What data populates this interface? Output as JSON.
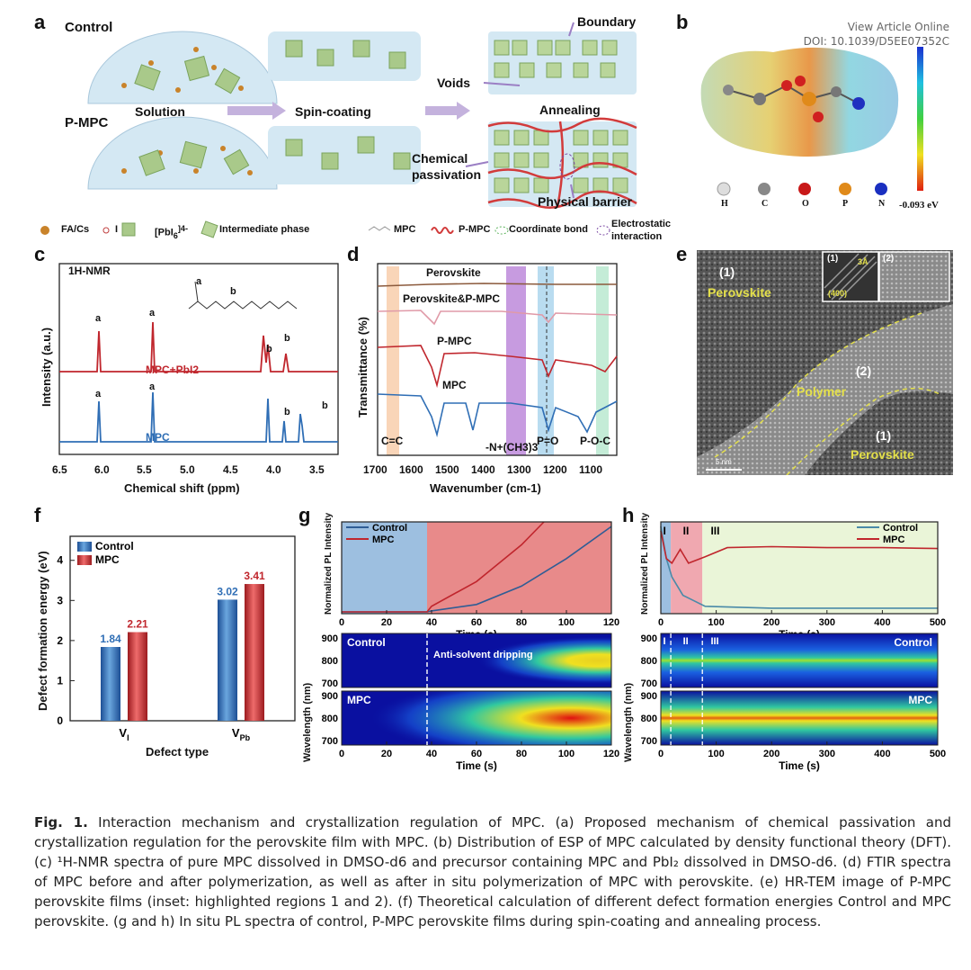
{
  "header": {
    "view_online": "View Article Online",
    "doi": "DOI: 10.1039/D5EE07352C"
  },
  "colors": {
    "red": "#c0262d",
    "blue": "#2f6eb5",
    "green_bg": "#eaf5d8",
    "pink_bg": "#e88a8a"
  },
  "panel_a": {
    "letter": "a",
    "control": "Control",
    "pmpc": "P-MPC",
    "solution": "Solution",
    "spin": "Spin-coating",
    "annealing": "Annealing",
    "boundary": "Boundary",
    "voids": "Voids",
    "chem1": "Chemical",
    "chem2": "passivation",
    "physical": "Physical barrier",
    "legend_facs": "FA/Cs",
    "legend_i": "I",
    "legend_pbi": "[PbI",
    "legend_pbi_sub": "6",
    "legend_pbi_sup": "]4-",
    "legend_inter": "Intermediate phase",
    "legend_mpc": "MPC",
    "legend_pmpc": "P-MPC",
    "legend_coord": "Coordinate bond",
    "legend_elec1": "Electrostatic",
    "legend_elec2": "interaction"
  },
  "panel_b": {
    "letter": "b",
    "scale_min": "-0.093 eV",
    "atoms": [
      "H",
      "C",
      "O",
      "P",
      "N"
    ]
  },
  "panel_c": {
    "letter": "c",
    "nmr_label": "1H-NMR",
    "ylabel": "Intensity (a.u.)",
    "xlabel": "Chemical shift (ppm)",
    "trace_top": "MPC+PbI2",
    "trace_bottom": "MPC",
    "peak_a": "a",
    "peak_b": "b",
    "mol_a": "a",
    "mol_b": "b",
    "xticks": [
      "6.5",
      "6.0",
      "5.5",
      "5.0",
      "4.5",
      "4.0",
      "3.5"
    ]
  },
  "panel_d": {
    "letter": "d",
    "ylabel": "Transmittance (%)",
    "xlabel": "Wavenumber (cm-1)",
    "traces": [
      "Perovskite",
      "Perovskite&P-MPC",
      "P-MPC",
      "MPC"
    ],
    "bands": [
      "C=C",
      "-N+(CH3)3",
      "P=O",
      "P-O-C"
    ],
    "xticks": [
      "1700",
      "1600",
      "1500",
      "1400",
      "1300",
      "1200",
      "1100"
    ]
  },
  "panel_e": {
    "letter": "e",
    "region1": "(1)",
    "perovskite": "Perovskite",
    "region2": "(2)",
    "polymer": "Polymer",
    "inset1": "(1)",
    "inset2": "(2)",
    "inset_spacing": "3Å",
    "inset_plane": "(400)",
    "scale": "5 nm"
  },
  "chart_data": [
    {
      "type": "bar",
      "panel": "f",
      "title": "",
      "xlabel": "Defect type",
      "ylabel": "Defect formation energy (eV)",
      "categories": [
        "VI",
        "VPb"
      ],
      "series": [
        {
          "name": "Control",
          "values": [
            1.84,
            3.02
          ]
        },
        {
          "name": "MPC",
          "values": [
            2.21,
            3.41
          ]
        }
      ],
      "ylim": [
        0,
        4.6
      ],
      "yticks": [
        "0",
        "1",
        "2",
        "3",
        "4"
      ],
      "labels": [
        "1.84",
        "2.21",
        "3.02",
        "3.41"
      ]
    },
    {
      "type": "line",
      "panel": "g",
      "xlabel": "Time (s)",
      "ylabel": "Normalized PL Intensity",
      "series": [
        {
          "name": "Control",
          "x": [
            0,
            38,
            40,
            60,
            80,
            100,
            120
          ],
          "y": [
            0.02,
            0.02,
            0.03,
            0.1,
            0.3,
            0.6,
            0.95
          ]
        },
        {
          "name": "MPC",
          "x": [
            0,
            38,
            40,
            60,
            80,
            90
          ],
          "y": [
            0.02,
            0.02,
            0.08,
            0.35,
            0.75,
            1.0
          ]
        }
      ],
      "xlim": [
        0,
        120
      ],
      "xticks": [
        "0",
        "20",
        "40",
        "60",
        "80",
        "100",
        "120"
      ],
      "heatmap_ylabel": "Wavelength (nm)",
      "heatmap_yticks": [
        "900",
        "800",
        "700"
      ],
      "heatmap_labels": [
        "Control",
        "MPC"
      ],
      "annotation": "Anti-solvent dripping"
    },
    {
      "type": "line",
      "panel": "h",
      "xlabel": "Time (s)",
      "ylabel": "Normalized PL Intensity",
      "series": [
        {
          "name": "Control",
          "x": [
            0,
            10,
            20,
            40,
            80,
            200,
            500
          ],
          "y": [
            0.95,
            0.6,
            0.4,
            0.2,
            0.08,
            0.06,
            0.06
          ]
        },
        {
          "name": "MPC",
          "x": [
            0,
            10,
            20,
            35,
            50,
            80,
            120,
            200,
            300,
            400,
            500
          ],
          "y": [
            0.9,
            0.6,
            0.55,
            0.7,
            0.55,
            0.62,
            0.72,
            0.73,
            0.72,
            0.72,
            0.71
          ]
        }
      ],
      "xlim": [
        0,
        500
      ],
      "xticks": [
        "0",
        "100",
        "200",
        "300",
        "400",
        "500"
      ],
      "stages": [
        "I",
        "II",
        "III"
      ],
      "heatmap_ylabel": "Wavelength (nm)",
      "heatmap_yticks": [
        "900",
        "800",
        "700"
      ],
      "heatmap_labels": [
        "Control",
        "MPC"
      ]
    }
  ],
  "caption": {
    "fig": "Fig. 1.",
    "text": "Interaction mechanism and crystallization regulation of MPC. (a) Proposed mechanism of chemical passivation and crystallization regulation for the perovskite film with MPC. (b) Distribution of ESP of MPC calculated by density functional theory (DFT). (c) ¹H-NMR spectra of pure MPC dissolved in DMSO-d6 and precursor containing MPC and PbI₂ dissolved in DMSO-d6. (d) FTIR spectra of MPC before and after polymerization, as well as after in situ polymerization of MPC with perovskite. (e) HR-TEM image of P-MPC perovskite films (inset: highlighted regions 1 and 2). (f) Theoretical calculation of different defect formation energies Control and MPC perovskite. (g and h) In situ PL spectra of control, P-MPC perovskite films during spin-coating and annealing process."
  }
}
